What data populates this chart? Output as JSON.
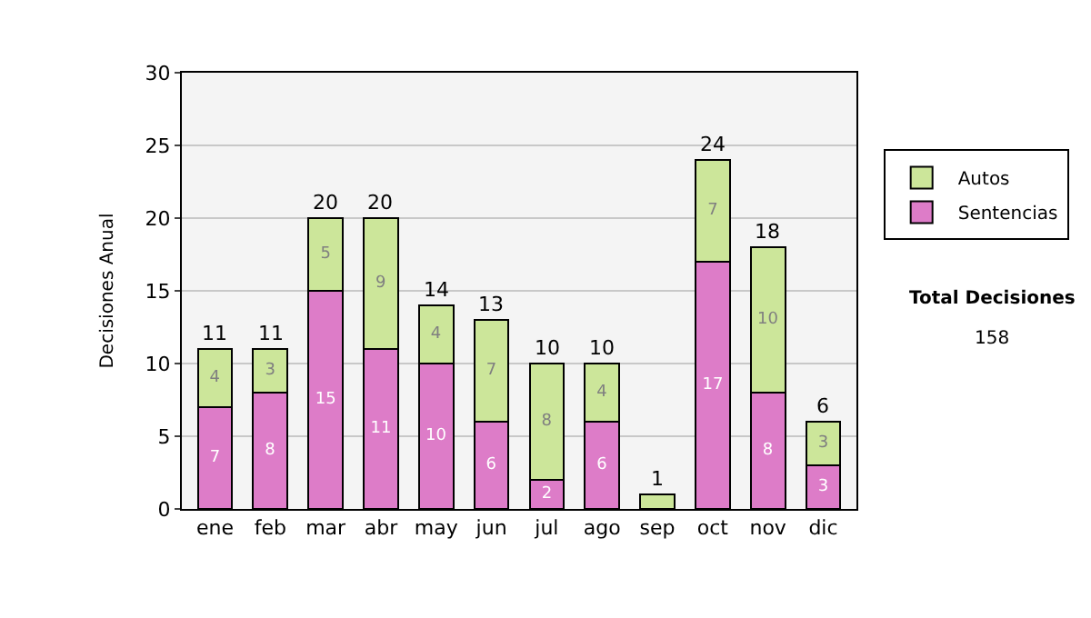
{
  "chart_data": {
    "type": "bar",
    "stacked": true,
    "ylabel": "Decisiones Anual",
    "categories": [
      "ene",
      "feb",
      "mar",
      "abr",
      "may",
      "jun",
      "jul",
      "ago",
      "sep",
      "oct",
      "nov",
      "dic"
    ],
    "series": [
      {
        "name": "Sentencias",
        "color": "#dd7cc8",
        "values": [
          7,
          8,
          15,
          11,
          10,
          6,
          2,
          6,
          0,
          17,
          8,
          3
        ],
        "value_labels": [
          "7",
          "8",
          "15",
          "11",
          "10",
          "6",
          "2",
          "6",
          null,
          "17",
          "8",
          "3"
        ]
      },
      {
        "name": "Autos",
        "color": "#cce69a",
        "values": [
          4,
          3,
          5,
          9,
          4,
          7,
          8,
          4,
          1,
          7,
          10,
          3
        ],
        "value_labels": [
          "4",
          "3",
          "5",
          "9",
          "4",
          "7",
          "8",
          "4",
          null,
          "7",
          "10",
          "3"
        ]
      }
    ],
    "totals": [
      "11",
      "11",
      "20",
      "20",
      "14",
      "13",
      "10",
      "10",
      "1",
      "24",
      "18",
      "6"
    ],
    "ylim": [
      0,
      30
    ],
    "yticks": [
      0,
      5,
      10,
      15,
      20,
      25,
      30
    ],
    "grid": "y",
    "legend": "right",
    "annotations": [
      "Total Decisiones",
      "158"
    ]
  }
}
